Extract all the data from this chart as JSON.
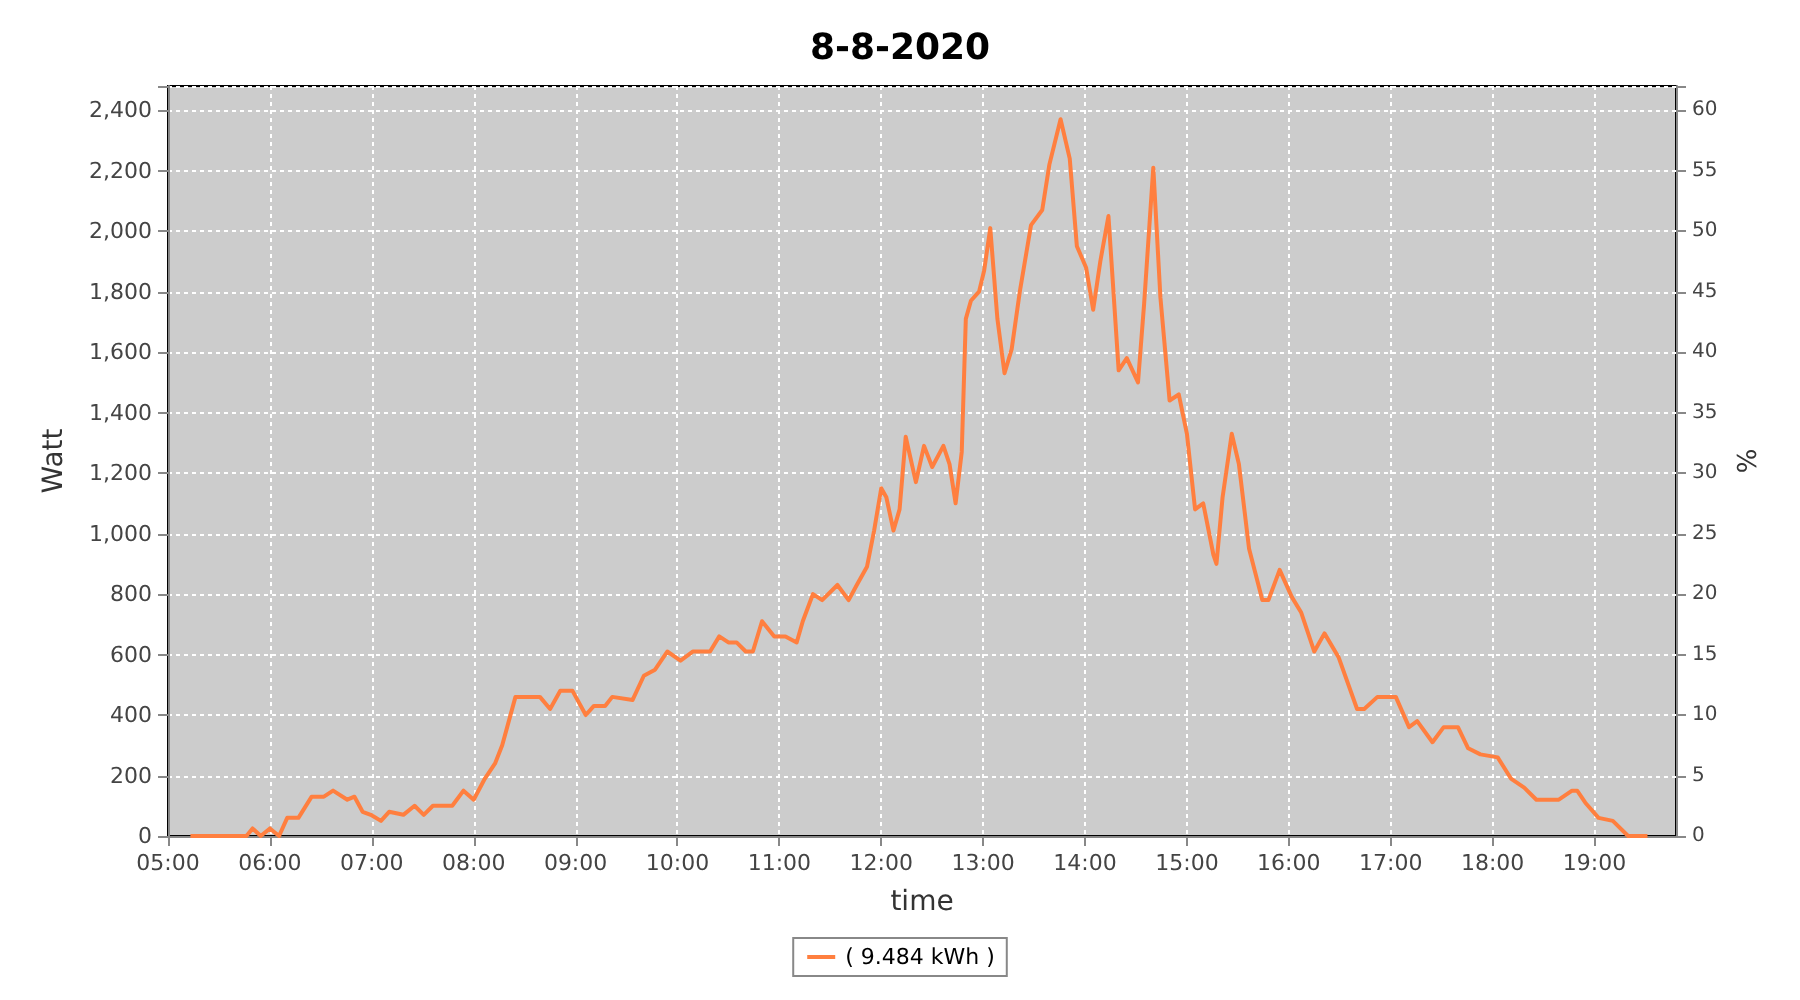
{
  "chart_data": {
    "type": "line",
    "title": "8-8-2020",
    "xlabel": "time",
    "ylabel": "Watt",
    "y2label": "%",
    "xlim": [
      5,
      19.8
    ],
    "xticks": [
      {
        "value": 5,
        "label": "05:00"
      },
      {
        "value": 6,
        "label": "06:00"
      },
      {
        "value": 7,
        "label": "07:00"
      },
      {
        "value": 8,
        "label": "08:00"
      },
      {
        "value": 9,
        "label": "09:00"
      },
      {
        "value": 10,
        "label": "10:00"
      },
      {
        "value": 11,
        "label": "11:00"
      },
      {
        "value": 12,
        "label": "12:00"
      },
      {
        "value": 13,
        "label": "13:00"
      },
      {
        "value": 14,
        "label": "14:00"
      },
      {
        "value": 15,
        "label": "15:00"
      },
      {
        "value": 16,
        "label": "16:00"
      },
      {
        "value": 17,
        "label": "17:00"
      },
      {
        "value": 18,
        "label": "18:00"
      },
      {
        "value": 19,
        "label": "19:00"
      }
    ],
    "ylim": [
      0,
      2480
    ],
    "yticks": [
      0,
      200,
      400,
      600,
      800,
      {
        "value": 1000,
        "label": "1,000"
      },
      {
        "value": 1200,
        "label": "1,200"
      },
      {
        "value": 1400,
        "label": "1,400"
      },
      {
        "value": 1600,
        "label": "1,600"
      },
      {
        "value": 1800,
        "label": "1,800"
      },
      {
        "value": 2000,
        "label": "2,000"
      },
      {
        "value": 2200,
        "label": "2,200"
      },
      {
        "value": 2400,
        "label": "2,400"
      }
    ],
    "y2lim": [
      0,
      62
    ],
    "y2ticks": [
      0,
      5,
      10,
      15,
      20,
      25,
      30,
      35,
      40,
      45,
      50,
      55,
      60
    ],
    "grid": true,
    "legend": "bottom",
    "marker": "none",
    "line_style": "solid",
    "series": [
      {
        "name": "( 9.484 kWh )",
        "color": "#ff7f3f",
        "x": [
          5.22,
          5.77,
          5.83,
          5.91,
          6.0,
          6.09,
          6.17,
          6.28,
          6.41,
          6.53,
          6.62,
          6.76,
          6.83,
          6.91,
          6.99,
          7.09,
          7.17,
          7.31,
          7.42,
          7.51,
          7.6,
          7.79,
          7.9,
          8.0,
          8.11,
          8.21,
          8.28,
          8.41,
          8.65,
          8.75,
          8.85,
          8.97,
          9.1,
          9.18,
          9.29,
          9.36,
          9.56,
          9.67,
          9.78,
          9.9,
          10.03,
          10.15,
          10.32,
          10.41,
          10.5,
          10.58,
          10.67,
          10.74,
          10.83,
          10.95,
          11.06,
          11.17,
          11.23,
          11.33,
          11.42,
          11.57,
          11.68,
          11.76,
          11.86,
          11.93,
          12.0,
          12.05,
          12.12,
          12.18,
          12.24,
          12.34,
          12.42,
          12.5,
          12.61,
          12.67,
          12.73,
          12.79,
          12.83,
          12.88,
          12.96,
          13.01,
          13.07,
          13.14,
          13.21,
          13.28,
          13.36,
          13.47,
          13.58,
          13.65,
          13.76,
          13.85,
          13.92,
          14.01,
          14.08,
          14.15,
          14.23,
          14.33,
          14.41,
          14.52,
          14.58,
          14.67,
          14.74,
          14.83,
          14.92,
          15.0,
          15.08,
          15.16,
          15.26,
          15.29,
          15.35,
          15.44,
          15.51,
          15.61,
          15.74,
          15.8,
          15.91,
          16.03,
          16.12,
          16.25,
          16.35,
          16.49,
          16.67,
          16.74,
          16.87,
          17.05,
          17.18,
          17.26,
          17.41,
          17.52,
          17.66,
          17.76,
          17.88,
          18.05,
          18.18,
          18.31,
          18.43,
          18.65,
          18.78,
          18.83,
          18.91,
          19.04,
          19.18,
          19.33,
          19.52
        ],
        "values": [
          0,
          0,
          25,
          0,
          25,
          0,
          60,
          60,
          130,
          130,
          150,
          120,
          130,
          80,
          70,
          50,
          80,
          70,
          100,
          70,
          100,
          100,
          150,
          120,
          190,
          240,
          300,
          460,
          460,
          420,
          480,
          480,
          400,
          430,
          430,
          460,
          450,
          530,
          550,
          610,
          580,
          610,
          610,
          660,
          640,
          640,
          610,
          610,
          710,
          660,
          660,
          640,
          710,
          800,
          780,
          830,
          780,
          830,
          890,
          1010,
          1150,
          1120,
          1010,
          1080,
          1320,
          1170,
          1290,
          1220,
          1290,
          1230,
          1100,
          1270,
          1710,
          1770,
          1800,
          1870,
          2010,
          1710,
          1530,
          1610,
          1800,
          2020,
          2070,
          2220,
          2370,
          2240,
          1950,
          1880,
          1740,
          1900,
          2050,
          1540,
          1580,
          1500,
          1760,
          2210,
          1780,
          1440,
          1460,
          1330,
          1080,
          1100,
          930,
          900,
          1120,
          1330,
          1230,
          950,
          780,
          780,
          880,
          790,
          740,
          610,
          670,
          590,
          420,
          420,
          460,
          460,
          360,
          380,
          310,
          360,
          360,
          290,
          270,
          260,
          190,
          160,
          120,
          120,
          150,
          150,
          110,
          60,
          50,
          0,
          0
        ]
      }
    ]
  }
}
